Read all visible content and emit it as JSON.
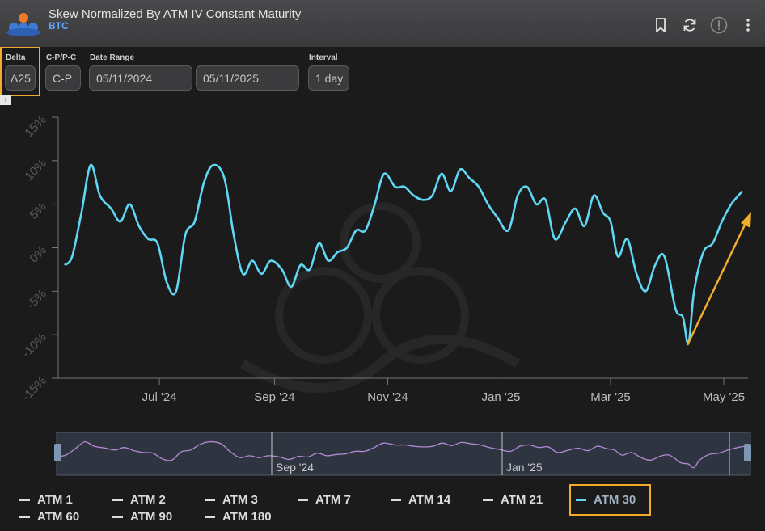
{
  "header": {
    "title": "Skew Normalized By ATM IV Constant Maturity",
    "subtitle": "BTC",
    "icons": [
      "bookmark-icon",
      "refresh-icon",
      "info-icon",
      "more-vert-icon"
    ]
  },
  "controls": {
    "delta_label": "Delta",
    "delta_value": "Δ25",
    "cp_label": "C-P/P-C",
    "cp_value": "C-P",
    "date_range_label": "Date Range",
    "date_start": "05/11/2024",
    "date_end": "05/11/2025",
    "interval_label": "Interval",
    "interval_value": "1 day"
  },
  "colors": {
    "series": "#5fd8f5",
    "navigator_line": "#b48ad6",
    "highlight": "#f0ac2a",
    "background": "#1b1b1c"
  },
  "navigator": {
    "labels": [
      "Sep '24",
      "Jan '25"
    ]
  },
  "legend": {
    "items": [
      "ATM 1",
      "ATM 2",
      "ATM 3",
      "ATM 7",
      "ATM 14",
      "ATM 21",
      "ATM 30",
      "ATM 60",
      "ATM 90",
      "ATM 180"
    ],
    "active": "ATM 30"
  },
  "chart_data": {
    "type": "line",
    "title": "Skew Normalized By ATM IV Constant Maturity",
    "ylim": [
      -15,
      15
    ],
    "y_ticks": [
      "15%",
      "10%",
      "5%",
      "0%",
      "-5%",
      "-10%",
      "-15%"
    ],
    "x_ticks": [
      "Jul '24",
      "Sep '24",
      "Nov '24",
      "Jan '25",
      "Mar '25",
      "May '25"
    ],
    "grid": false,
    "series": [
      {
        "name": "ATM 30",
        "x": [
          "2024-05-11",
          "2024-05-15",
          "2024-05-20",
          "2024-05-25",
          "2024-05-30",
          "2024-06-05",
          "2024-06-10",
          "2024-06-15",
          "2024-06-20",
          "2024-06-25",
          "2024-06-30",
          "2024-07-05",
          "2024-07-10",
          "2024-07-15",
          "2024-07-20",
          "2024-07-25",
          "2024-07-30",
          "2024-08-05",
          "2024-08-10",
          "2024-08-15",
          "2024-08-20",
          "2024-08-25",
          "2024-08-30",
          "2024-09-05",
          "2024-09-10",
          "2024-09-15",
          "2024-09-20",
          "2024-09-25",
          "2024-09-30",
          "2024-10-05",
          "2024-10-10",
          "2024-10-15",
          "2024-10-20",
          "2024-10-25",
          "2024-10-30",
          "2024-11-05",
          "2024-11-10",
          "2024-11-15",
          "2024-11-20",
          "2024-11-25",
          "2024-11-30",
          "2024-12-05",
          "2024-12-10",
          "2024-12-15",
          "2024-12-20",
          "2024-12-25",
          "2024-12-30",
          "2025-01-05",
          "2025-01-10",
          "2025-01-15",
          "2025-01-20",
          "2025-01-25",
          "2025-01-30",
          "2025-02-05",
          "2025-02-10",
          "2025-02-15",
          "2025-02-20",
          "2025-02-25",
          "2025-03-01",
          "2025-03-05",
          "2025-03-10",
          "2025-03-15",
          "2025-03-20",
          "2025-03-25",
          "2025-03-30",
          "2025-04-05",
          "2025-04-09",
          "2025-04-12",
          "2025-04-15",
          "2025-04-20",
          "2025-04-25",
          "2025-04-30",
          "2025-05-05",
          "2025-05-11"
        ],
        "values": [
          -2.0,
          -1.0,
          4.0,
          9.5,
          6.0,
          4.5,
          3.0,
          5.0,
          2.5,
          1.0,
          0.5,
          -4.0,
          -5.0,
          1.5,
          3.0,
          7.5,
          9.5,
          8.0,
          1.5,
          -3.0,
          -1.5,
          -3.0,
          -1.5,
          -2.5,
          -4.5,
          -2.0,
          -2.5,
          0.5,
          -1.5,
          -0.5,
          0.0,
          2.0,
          2.0,
          5.0,
          8.5,
          7.0,
          7.0,
          6.0,
          5.5,
          6.0,
          8.5,
          6.5,
          9.0,
          8.0,
          7.0,
          5.0,
          3.5,
          2.0,
          6.0,
          7.0,
          5.0,
          5.5,
          1.0,
          3.0,
          4.5,
          2.5,
          6.0,
          4.0,
          3.0,
          -1.0,
          1.0,
          -3.0,
          -5.0,
          -2.0,
          -1.0,
          -7.0,
          -8.0,
          -11.0,
          -5.0,
          -0.5,
          0.5,
          3.0,
          5.0,
          6.5
        ]
      }
    ]
  }
}
